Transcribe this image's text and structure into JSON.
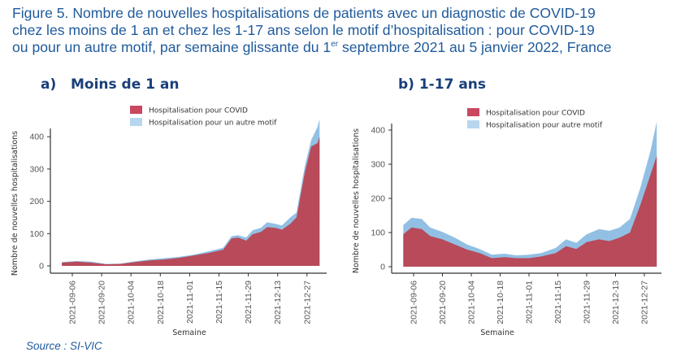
{
  "figure": {
    "title_line1": "Figure 5. Nombre de nouvelles hospitalisations de patients avec un diagnostic de COVID-19",
    "title_line2": "chez les moins de 1 an et chez les 1-17 ans selon le motif d’hospitalisation : pour COVID-19",
    "title_line3_pre": "ou pour un autre motif, par semaine glissante du 1",
    "title_line3_sup": "er",
    "title_line3_post": " septembre 2021 au 5 janvier 2022, France",
    "source": "Source : SI-VIC"
  },
  "colors": {
    "covid": "#b84a5a",
    "other": "#92c0e4",
    "legend_covid": "#c9475f",
    "legend_other": "#b8d6ee",
    "axis": "#333333"
  },
  "chart_data": [
    {
      "type": "area",
      "stacked": true,
      "panel_label": "a)   Moins de 1 an",
      "title": "Moins de 1 an",
      "xlabel": "Semaine",
      "ylabel": "Nombre de nouvelles hospitalisations",
      "ylim": [
        0,
        470
      ],
      "yticks": [
        0,
        100,
        200,
        300,
        400
      ],
      "xlim": [
        "2021-08-27",
        "2022-01-08"
      ],
      "xticks": [
        "2021-09-06",
        "2021-09-20",
        "2021-10-04",
        "2021-10-18",
        "2021-11-01",
        "2021-11-15",
        "2021-11-29",
        "2021-12-13",
        "2021-12-27"
      ],
      "grid": false,
      "legend": {
        "position": "top-center",
        "entries": [
          "Hospitalisation pour COVID",
          "Hospitalisation pour un autre motif"
        ]
      },
      "x": [
        "2021-09-01",
        "2021-09-08",
        "2021-09-15",
        "2021-09-22",
        "2021-09-29",
        "2021-10-06",
        "2021-10-13",
        "2021-10-20",
        "2021-10-27",
        "2021-11-03",
        "2021-11-10",
        "2021-11-17",
        "2021-11-21",
        "2021-11-24",
        "2021-11-28",
        "2021-12-01",
        "2021-12-05",
        "2021-12-08",
        "2021-12-12",
        "2021-12-15",
        "2021-12-19",
        "2021-12-22",
        "2021-12-26",
        "2021-12-29",
        "2022-01-01",
        "2022-01-02"
      ],
      "series": [
        {
          "name": "Hospitalisation pour COVID",
          "values": [
            10,
            13,
            10,
            5,
            6,
            12,
            17,
            20,
            25,
            32,
            40,
            50,
            85,
            88,
            78,
            98,
            105,
            120,
            118,
            112,
            130,
            150,
            290,
            370,
            380,
            400
          ]
        },
        {
          "name": "Hospitalisation pour un autre motif",
          "values": [
            2,
            2,
            3,
            1,
            1,
            2,
            3,
            4,
            3,
            3,
            5,
            6,
            7,
            7,
            10,
            12,
            13,
            15,
            12,
            13,
            20,
            15,
            20,
            20,
            50,
            55
          ]
        }
      ]
    },
    {
      "type": "area",
      "stacked": true,
      "panel_label": "b) 1-17 ans",
      "title": "1-17 ans",
      "xlabel": "Semaine",
      "ylabel": "Nombre de nouvelles hospitalisations",
      "ylim": [
        0,
        450
      ],
      "yticks": [
        0,
        100,
        200,
        300,
        400
      ],
      "xlim": [
        "2021-08-27",
        "2022-01-08"
      ],
      "xticks": [
        "2021-09-06",
        "2021-09-20",
        "2021-10-04",
        "2021-10-18",
        "2021-11-01",
        "2021-11-15",
        "2021-11-29",
        "2021-12-13",
        "2021-12-27"
      ],
      "grid": false,
      "legend": {
        "position": "top-center",
        "entries": [
          "Hospitalisation pour COVID",
          "Hospitalisation pour autre motif"
        ]
      },
      "x": [
        "2021-09-01",
        "2021-09-05",
        "2021-09-10",
        "2021-09-14",
        "2021-09-20",
        "2021-09-26",
        "2021-10-02",
        "2021-10-08",
        "2021-10-14",
        "2021-10-20",
        "2021-10-26",
        "2021-11-01",
        "2021-11-07",
        "2021-11-14",
        "2021-11-19",
        "2021-11-24",
        "2021-11-29",
        "2021-12-05",
        "2021-12-10",
        "2021-12-15",
        "2021-12-20",
        "2021-12-25",
        "2021-12-30",
        "2022-01-02"
      ],
      "series": [
        {
          "name": "Hospitalisation pour COVID",
          "values": [
            95,
            115,
            110,
            90,
            80,
            65,
            50,
            40,
            25,
            28,
            25,
            25,
            30,
            40,
            60,
            52,
            72,
            80,
            75,
            85,
            100,
            180,
            270,
            325
          ]
        },
        {
          "name": "Hospitalisation pour autre motif",
          "values": [
            27,
            28,
            30,
            25,
            22,
            20,
            15,
            12,
            10,
            10,
            8,
            10,
            10,
            15,
            20,
            18,
            23,
            30,
            30,
            30,
            40,
            50,
            70,
            100
          ]
        }
      ]
    }
  ]
}
